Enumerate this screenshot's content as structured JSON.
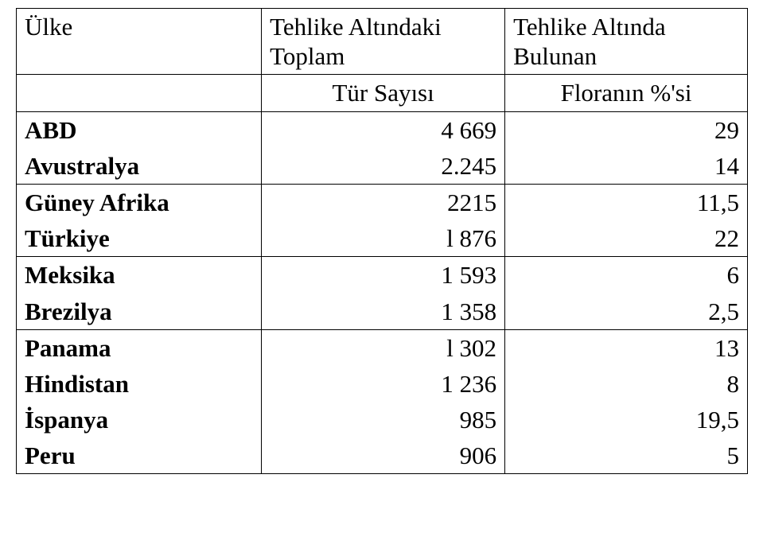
{
  "table": {
    "header": {
      "col1": "Ülke",
      "col2_line1": "Tehlike Altındaki",
      "col2_line2": "Toplam",
      "col3_line1": "Tehlike Altında",
      "col3_line2": "Bulunan"
    },
    "subheader": {
      "col2": "Tür Sayısı",
      "col3": "Floranın %'si"
    },
    "rows": [
      {
        "country": "ABD",
        "species": "4 669",
        "pct": "29"
      },
      {
        "country": "Avustralya",
        "species": "2.245",
        "pct": "14"
      },
      {
        "country": "Güney Afrika",
        "species": "2215",
        "pct": "11,5"
      },
      {
        "country": "Türkiye",
        "species": "l 876",
        "pct": "22"
      },
      {
        "country": "Meksika",
        "species": "1 593",
        "pct": "6"
      },
      {
        "country": "Brezilya",
        "species": "1 358",
        "pct": "2,5"
      },
      {
        "country": "Panama",
        "species": "l 302",
        "pct": "13"
      },
      {
        "country": "Hindistan",
        "species": "1 236",
        "pct": "8"
      },
      {
        "country": "İspanya",
        "species": "985",
        "pct": "19,5"
      },
      {
        "country": "Peru",
        "species": "906",
        "pct": "5"
      }
    ],
    "colors": {
      "background": "#ffffff",
      "border": "#000000",
      "text": "#000000"
    },
    "fontsize": 31,
    "font_family": "Times New Roman"
  }
}
